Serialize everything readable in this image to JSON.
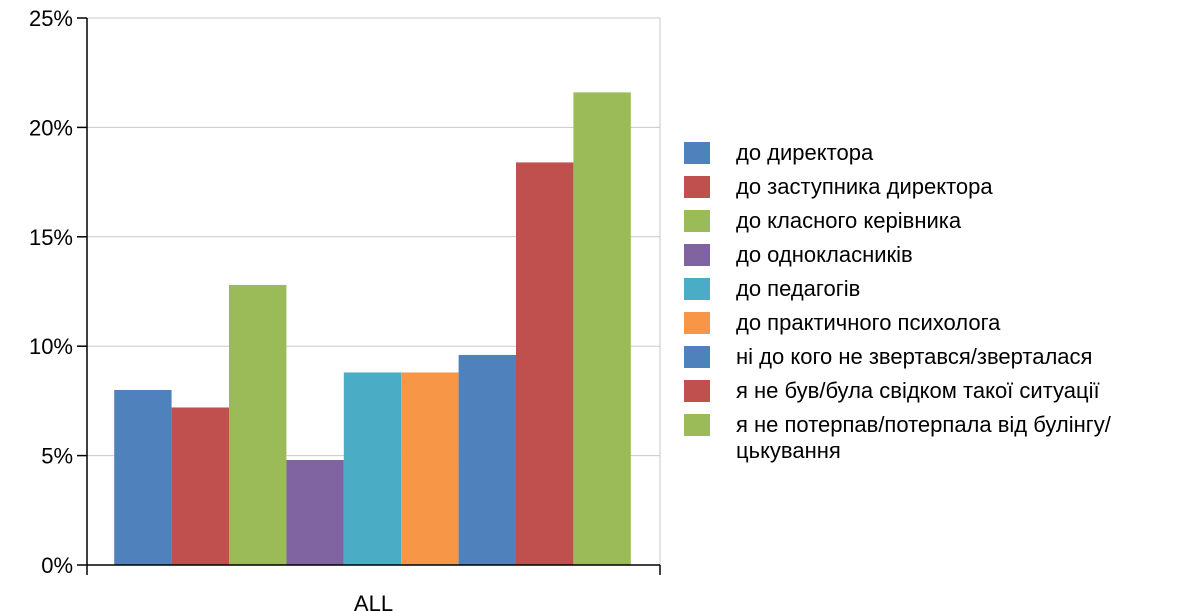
{
  "chart_data": {
    "type": "bar",
    "categories": [
      "ALL"
    ],
    "series": [
      {
        "name": "до директора",
        "values": [
          8.0
        ],
        "color": "#4F81BD"
      },
      {
        "name": "до заступника директора",
        "values": [
          7.2
        ],
        "color": "#C0504D"
      },
      {
        "name": "до класного керівника",
        "values": [
          12.8
        ],
        "color": "#9BBB59"
      },
      {
        "name": "до однокласників",
        "values": [
          4.8
        ],
        "color": "#8064A2"
      },
      {
        "name": "до педагогів",
        "values": [
          8.8
        ],
        "color": "#4BACC6"
      },
      {
        "name": "до практичного психолога",
        "values": [
          8.8
        ],
        "color": "#F79646"
      },
      {
        "name": "ні до кого не звертався/зверталася",
        "values": [
          9.6
        ],
        "color": "#4F81BD"
      },
      {
        "name": "я не був/була свідком такої ситуації",
        "values": [
          18.4
        ],
        "color": "#C0504D"
      },
      {
        "name": "я не потерпав/потерпала від булінгу/цькування",
        "values": [
          21.6
        ],
        "color": "#9BBB59"
      }
    ],
    "ylim": [
      0,
      25
    ],
    "yticks": [
      "0%",
      "5%",
      "10%",
      "15%",
      "20%",
      "25%"
    ],
    "ytick_values": [
      0,
      5,
      10,
      15,
      20,
      25
    ],
    "grid": true,
    "legend_position": "right"
  }
}
